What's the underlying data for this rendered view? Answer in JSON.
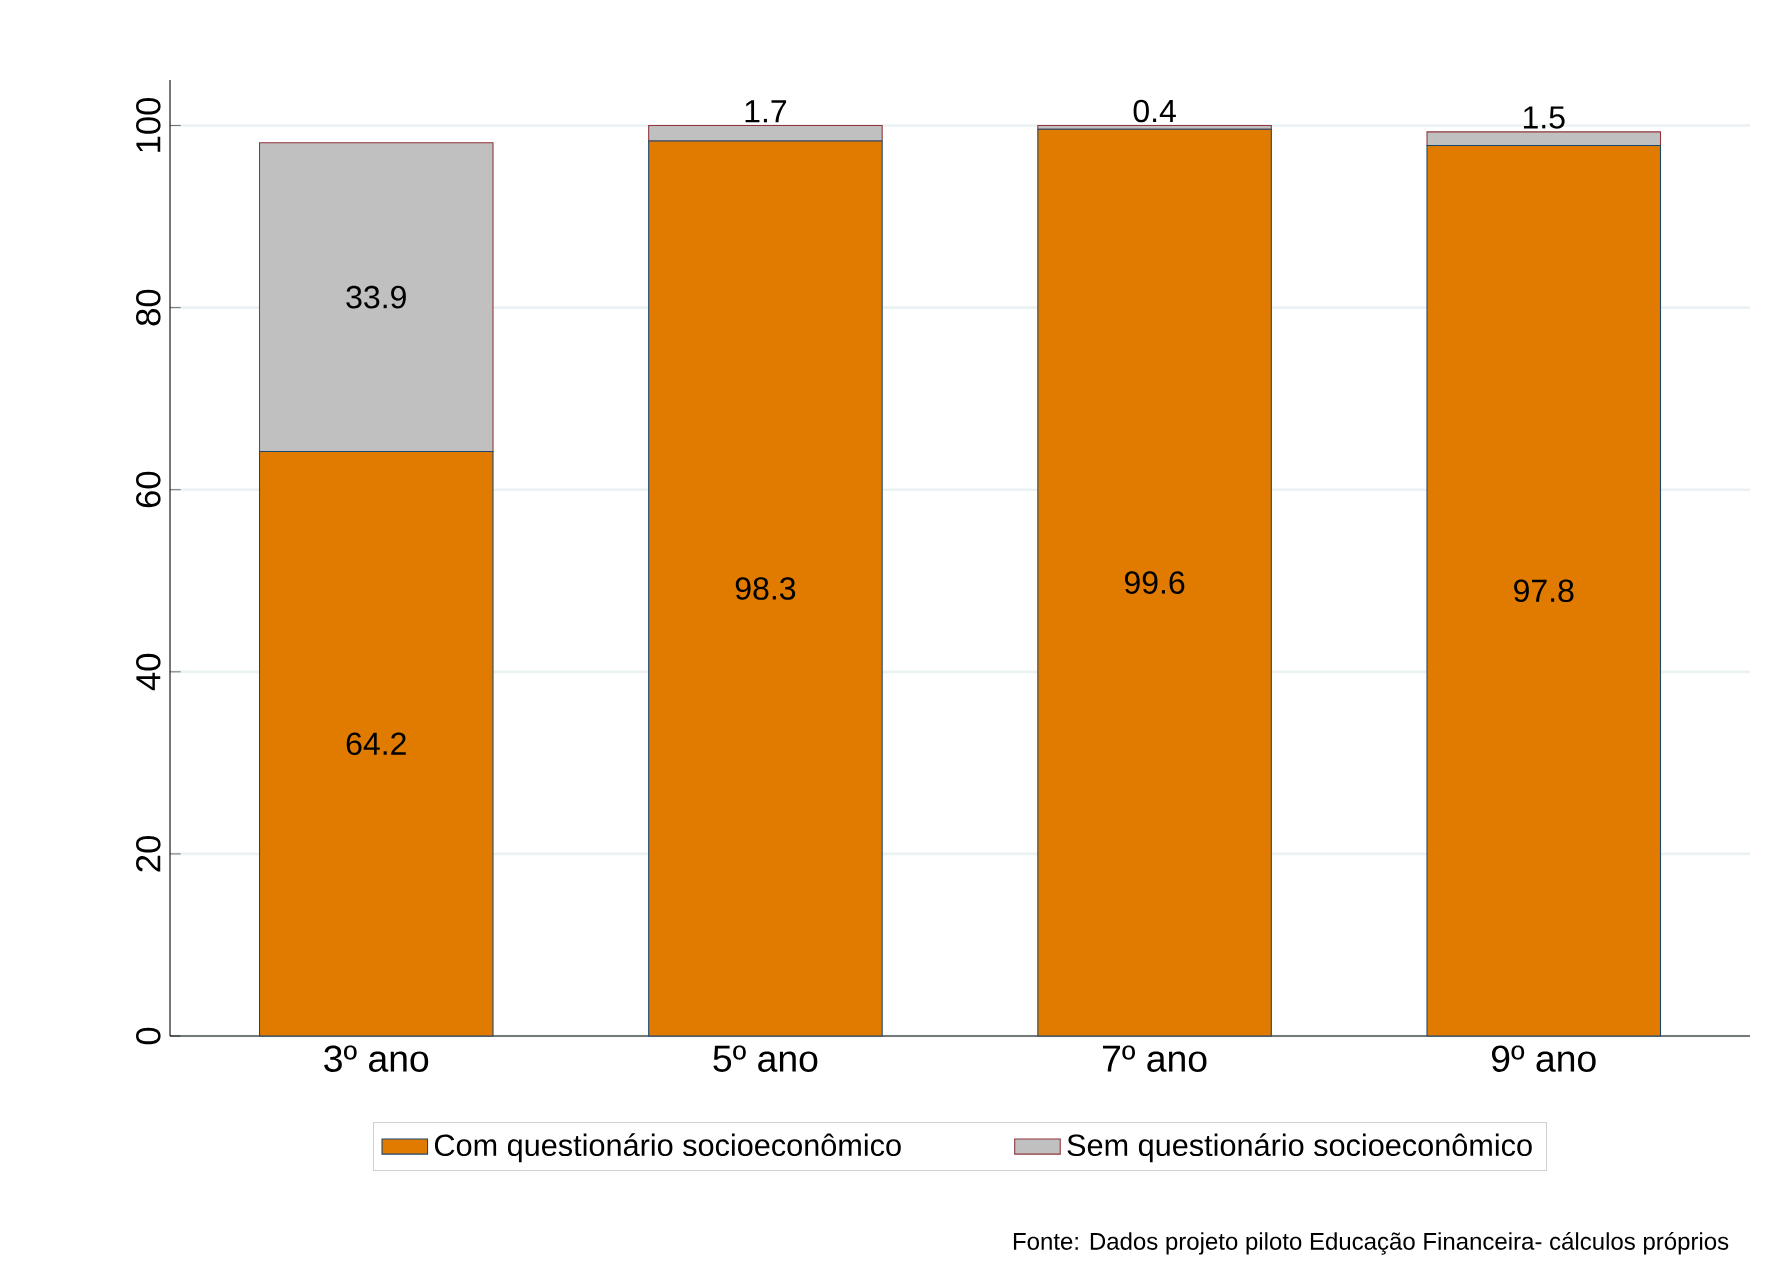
{
  "chart_data": {
    "type": "bar",
    "stacked": true,
    "categories": [
      "3º ano",
      "5º ano",
      "7º ano",
      "9º ano"
    ],
    "series": [
      {
        "name": "Com questionário socioeconômico",
        "color": "#e07b00",
        "values": [
          64.2,
          98.3,
          99.6,
          97.8
        ]
      },
      {
        "name": "Sem questionário socioeconômico",
        "color": "#c0c0c0",
        "values": [
          33.9,
          1.7,
          0.4,
          1.5
        ]
      }
    ],
    "ylim": [
      0,
      105
    ],
    "yticks": [
      0,
      20,
      40,
      60,
      80,
      100
    ],
    "grid": "y",
    "legend": "bottom",
    "data_labels": true,
    "annotations": [
      "Fonte: Dados projeto piloto Educação Financeira- cálculos próprios"
    ]
  }
}
